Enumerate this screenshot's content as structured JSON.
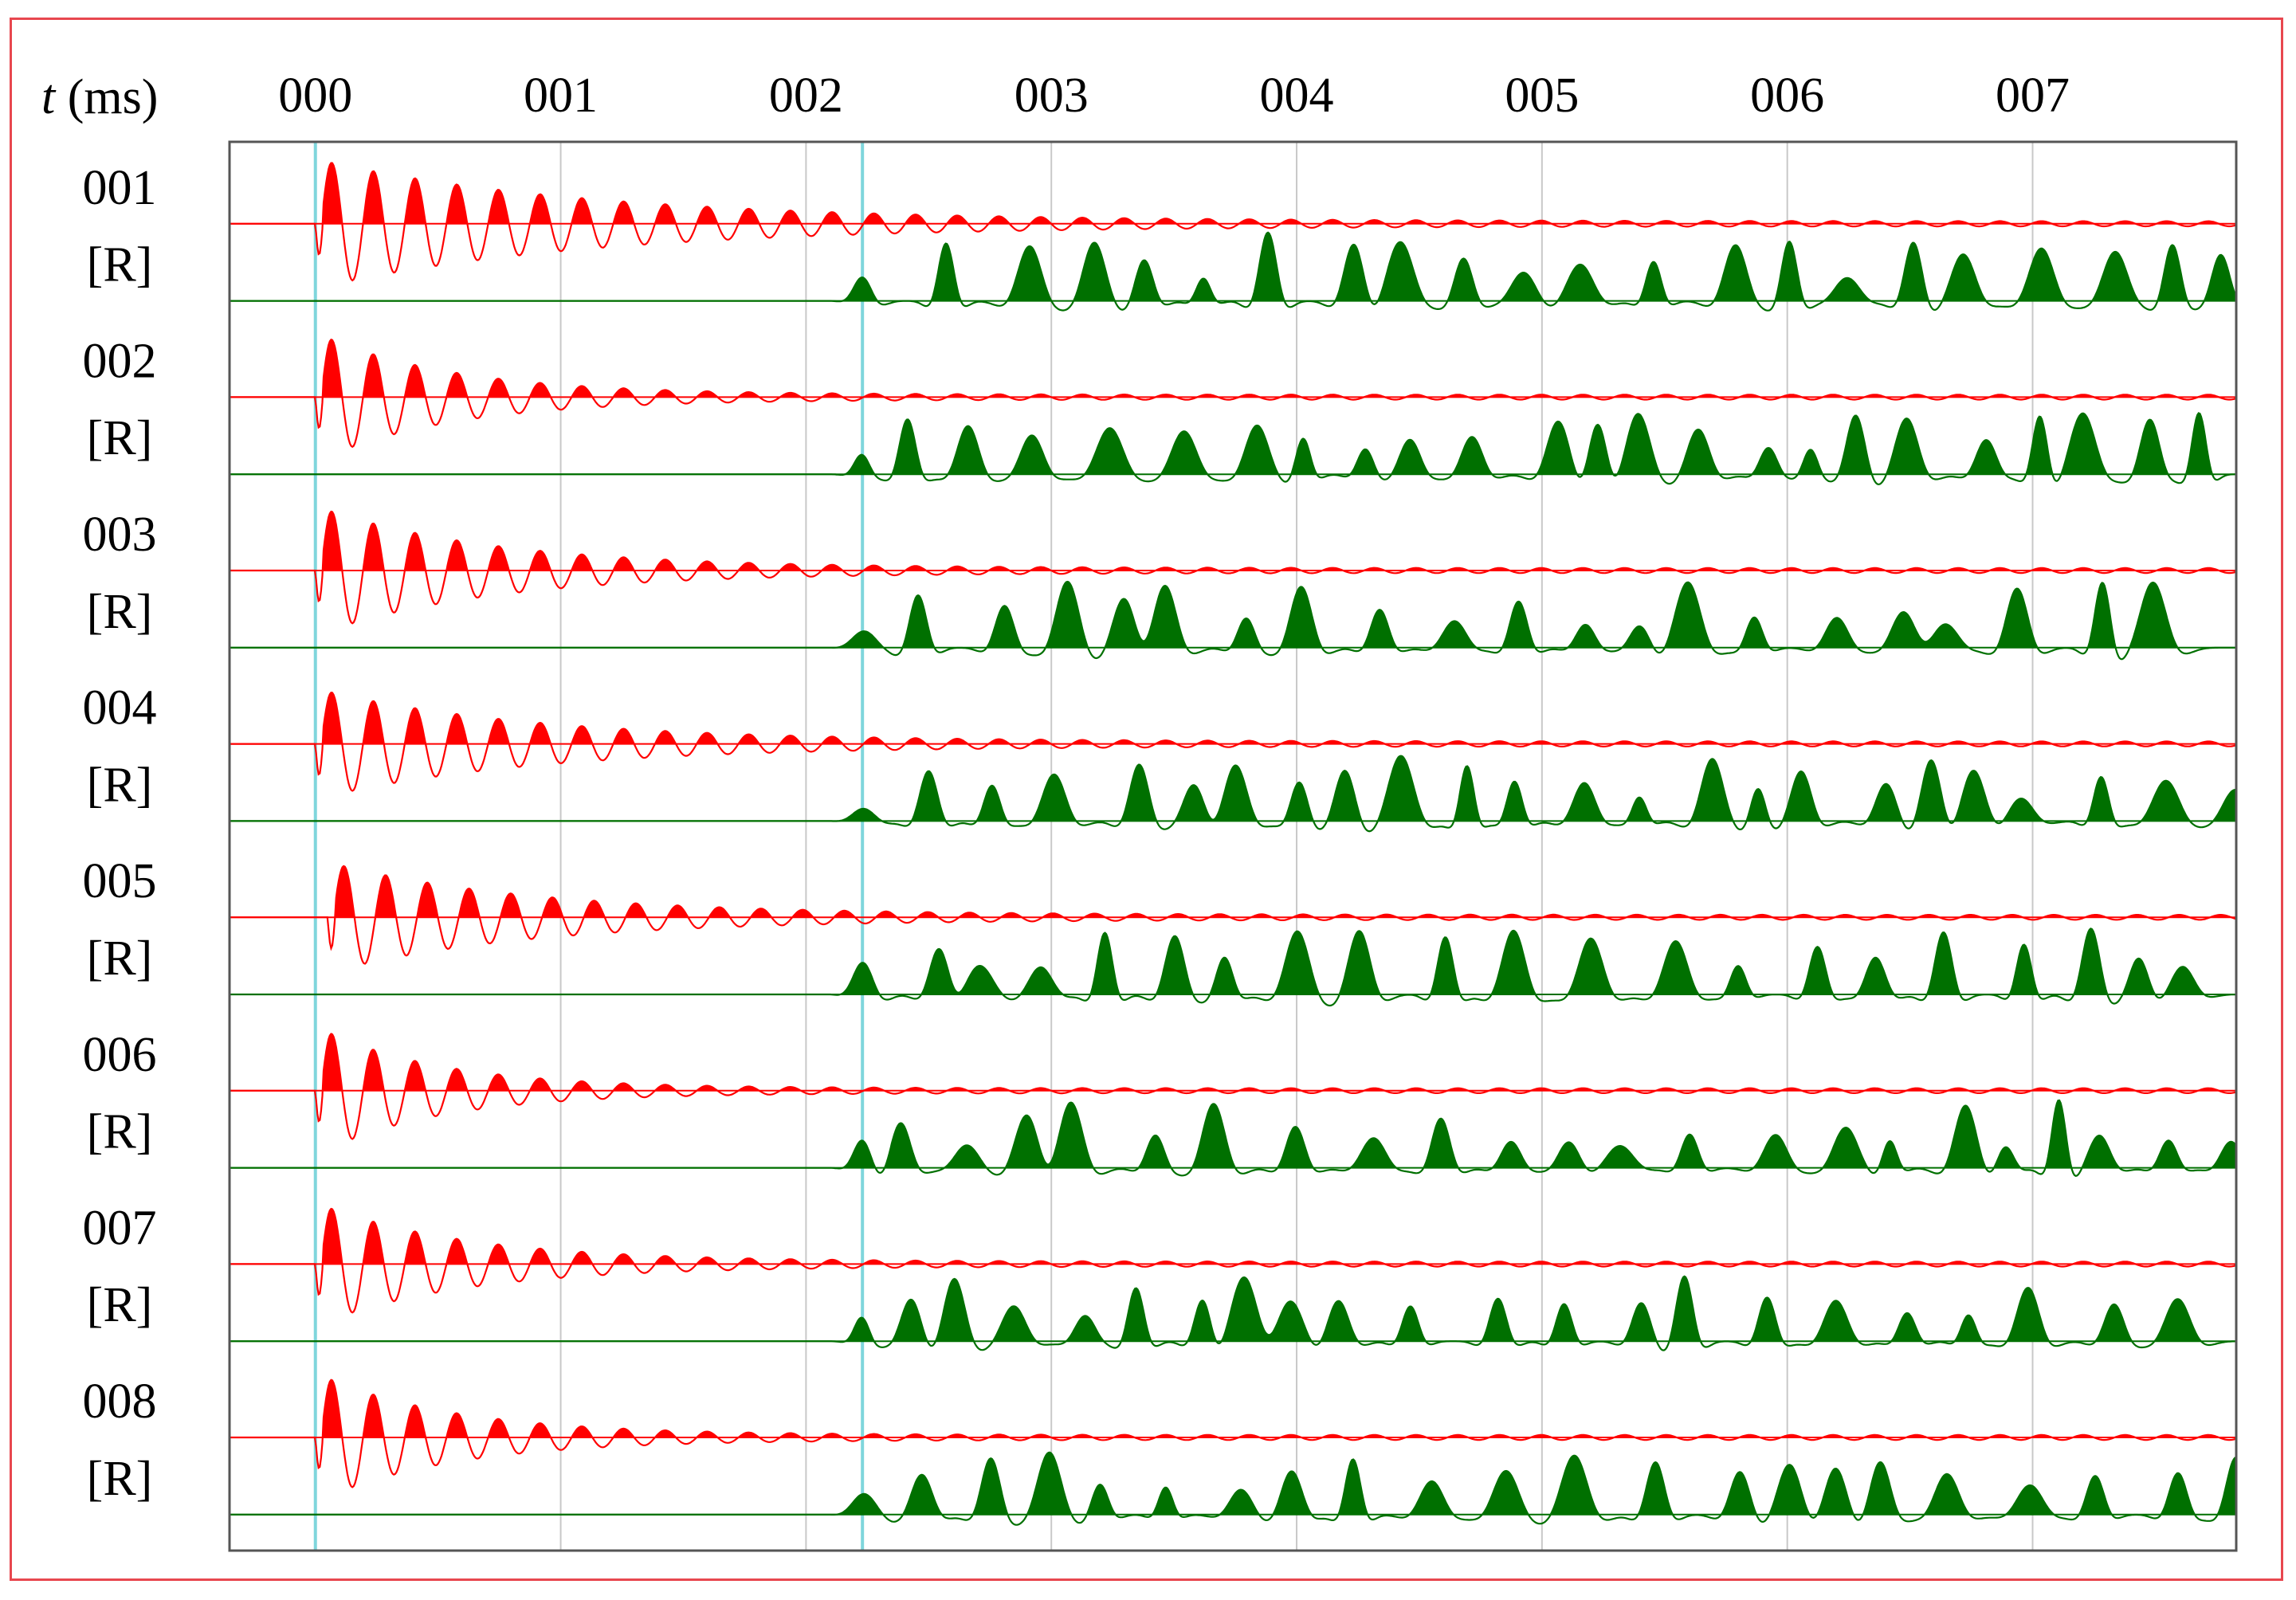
{
  "chart_data": {
    "type": "line",
    "xlabel_var": "t",
    "xlabel_unit": " (ms)",
    "x_ticks": [
      "000",
      "001",
      "002",
      "003",
      "004",
      "005",
      "006",
      "007"
    ],
    "xlim": [
      -0.35,
      7.83
    ],
    "grid": true,
    "reference_times": [
      0.0,
      2.23
    ],
    "colors": {
      "red": "#ff0000",
      "green": "#007000",
      "grid": "#c8c8c8",
      "marker": "#7fd6dc",
      "frame": "#e8474f"
    },
    "traces": [
      {
        "label": "001",
        "color": "red",
        "onset": 0.0,
        "decay": 2.0,
        "amp": 1.0
      },
      {
        "label": "[R]",
        "color": "green",
        "onset": 2.1,
        "seed": 1
      },
      {
        "label": "002",
        "color": "red",
        "onset": 0.0,
        "decay": 1.0,
        "amp": 1.0
      },
      {
        "label": "[R]",
        "color": "green",
        "onset": 2.1,
        "seed": 2
      },
      {
        "label": "003",
        "color": "red",
        "onset": 0.0,
        "decay": 1.3,
        "amp": 1.0
      },
      {
        "label": "[R]",
        "color": "green",
        "onset": 2.1,
        "seed": 3
      },
      {
        "label": "004",
        "color": "red",
        "onset": 0.0,
        "decay": 1.6,
        "amp": 0.85
      },
      {
        "label": "[R]",
        "color": "green",
        "onset": 2.1,
        "seed": 4
      },
      {
        "label": "005",
        "color": "red",
        "onset": 0.05,
        "decay": 1.5,
        "amp": 0.85
      },
      {
        "label": "[R]",
        "color": "green",
        "onset": 2.1,
        "seed": 5
      },
      {
        "label": "006",
        "color": "red",
        "onset": 0.0,
        "decay": 0.9,
        "amp": 1.0
      },
      {
        "label": "[R]",
        "color": "green",
        "onset": 2.1,
        "seed": 6
      },
      {
        "label": "007",
        "color": "red",
        "onset": 0.0,
        "decay": 1.1,
        "amp": 0.95
      },
      {
        "label": "[R]",
        "color": "green",
        "onset": 2.1,
        "seed": 7
      },
      {
        "label": "008",
        "color": "red",
        "onset": 0.0,
        "decay": 1.0,
        "amp": 1.0
      },
      {
        "label": "[R]",
        "color": "green",
        "onset": 2.1,
        "seed": 8
      }
    ]
  }
}
